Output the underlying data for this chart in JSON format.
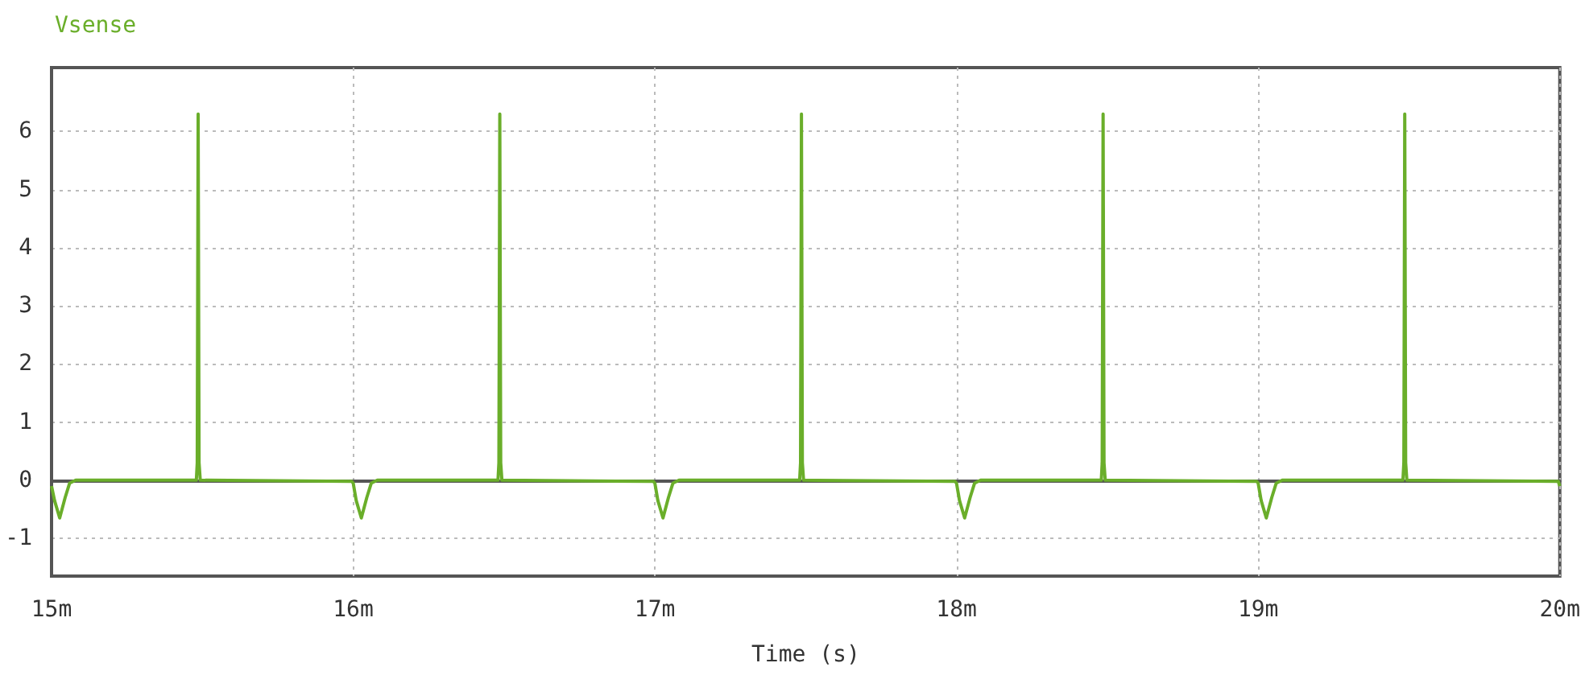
{
  "chart_data": {
    "type": "line",
    "xlabel": "Time (s)",
    "xlim": [
      15,
      20
    ],
    "xticks": [
      {
        "value": 15,
        "label": "15m"
      },
      {
        "value": 16,
        "label": "16m"
      },
      {
        "value": 17,
        "label": "17m"
      },
      {
        "value": 18,
        "label": "18m"
      },
      {
        "value": 19,
        "label": "19m"
      },
      {
        "value": 20,
        "label": "20m"
      }
    ],
    "ylim": [
      -1.65,
      7.1
    ],
    "yticks": [
      -1,
      0,
      1,
      2,
      3,
      4,
      5,
      6
    ],
    "grid": true,
    "legend": "top left",
    "marker": "none",
    "line_style": "solid",
    "series": [
      {
        "name": "Vsense",
        "color": "#6aae2a",
        "x": [
          15,
          15.01,
          15.027,
          15.045,
          15.06,
          15.08,
          15.48,
          15.483,
          15.486,
          15.489,
          15.493,
          15.995,
          16,
          16.01,
          16.027,
          16.045,
          16.06,
          16.08,
          16.48,
          16.483,
          16.486,
          16.489,
          16.493,
          16.995,
          17,
          17.01,
          17.027,
          17.045,
          17.06,
          17.08,
          17.48,
          17.483,
          17.486,
          17.489,
          17.493,
          17.995,
          18,
          18.01,
          18.027,
          18.045,
          18.06,
          18.08,
          18.48,
          18.483,
          18.486,
          18.489,
          18.493,
          18.995,
          19,
          19.01,
          19.027,
          19.045,
          19.06,
          19.08,
          19.48,
          19.483,
          19.486,
          19.489,
          19.493,
          19.995,
          20
        ],
        "values": [
          -0.1,
          -0.35,
          -0.65,
          -0.3,
          -0.05,
          0,
          0,
          0.3,
          6.3,
          0.3,
          0,
          -0.02,
          -0.05,
          -0.35,
          -0.65,
          -0.3,
          -0.05,
          0,
          0,
          0.3,
          6.3,
          0.3,
          0,
          -0.02,
          -0.05,
          -0.35,
          -0.65,
          -0.3,
          -0.05,
          0,
          0,
          0.3,
          6.3,
          0.3,
          0,
          -0.02,
          -0.05,
          -0.35,
          -0.65,
          -0.3,
          -0.05,
          0,
          0,
          0.3,
          6.3,
          0.3,
          0,
          -0.02,
          -0.05,
          -0.35,
          -0.65,
          -0.3,
          -0.05,
          0,
          0,
          0.3,
          6.3,
          0.3,
          0,
          -0.02,
          -0.1
        ]
      }
    ]
  }
}
